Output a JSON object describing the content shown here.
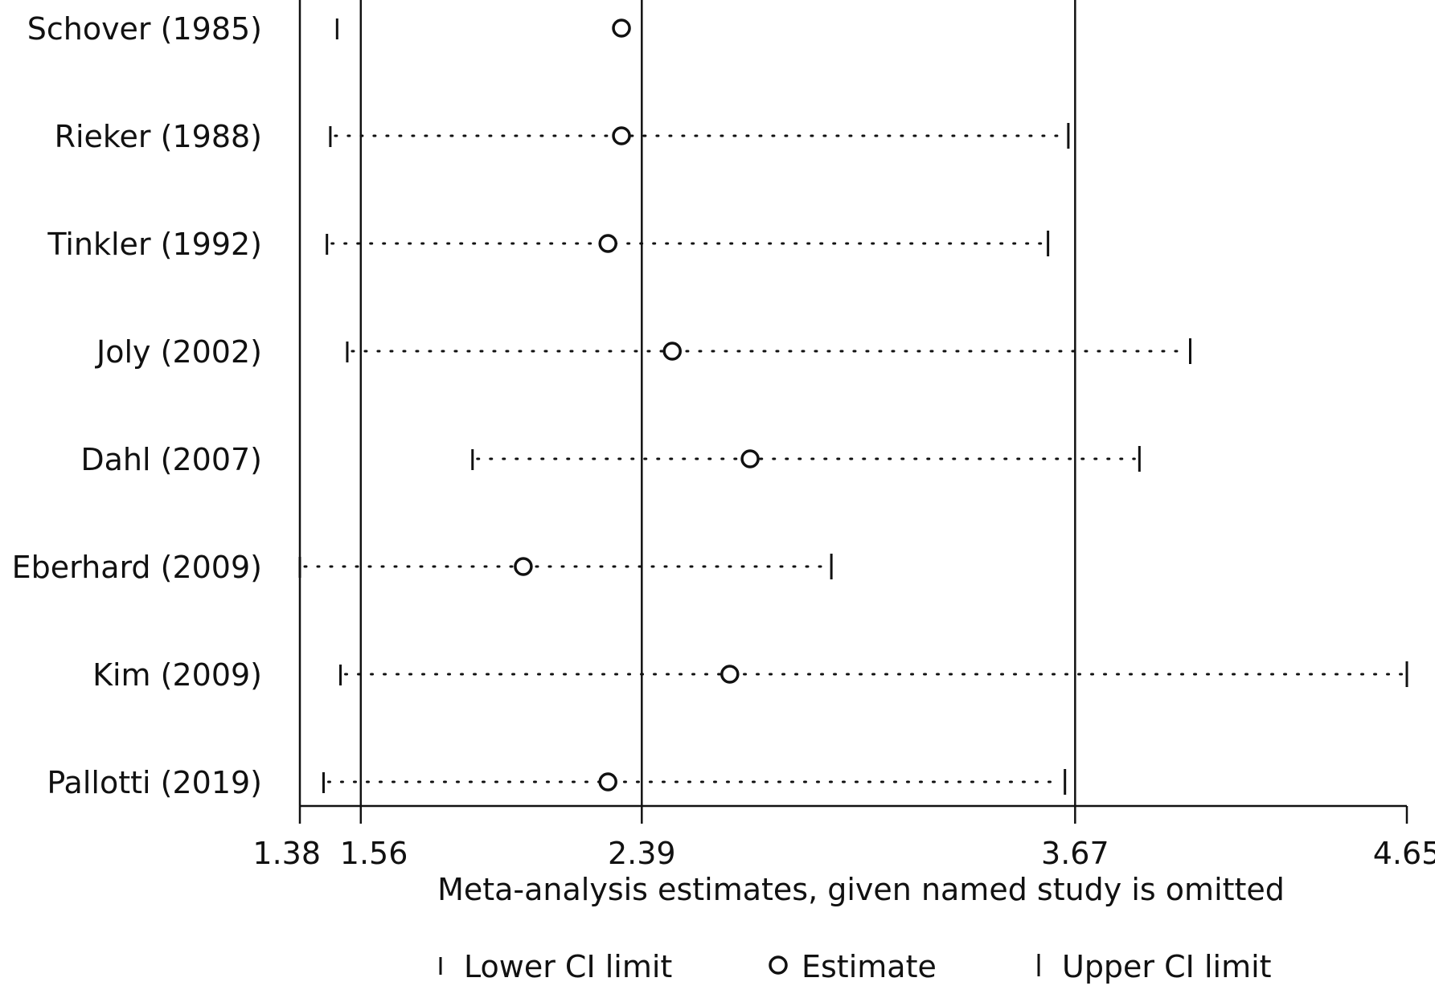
{
  "chart_data": {
    "type": "scatter",
    "title": "",
    "xlabel": "Meta-analysis estimates, given named study is omitted",
    "ylabel": "",
    "xlim": [
      1.38,
      4.65
    ],
    "xticks": [
      1.38,
      1.56,
      2.39,
      3.67,
      4.65
    ],
    "xtick_labels": [
      "1.38",
      "1.56",
      "2.39",
      "3.67",
      "4.65"
    ],
    "reference_lines": [
      1.38,
      1.56,
      2.39,
      3.67
    ],
    "grid": false,
    "legend_position": "bottom",
    "legend": [
      {
        "key": "lower",
        "label": "Lower CI limit"
      },
      {
        "key": "estimate",
        "label": "Estimate"
      },
      {
        "key": "upper",
        "label": "Upper CI limit"
      }
    ],
    "studies": [
      {
        "name": "Schover (1985)",
        "lower": 1.49,
        "estimate": 2.33,
        "upper": null
      },
      {
        "name": "Rieker (1988)",
        "lower": 1.47,
        "estimate": 2.33,
        "upper": 3.65
      },
      {
        "name": "Tinkler (1992)",
        "lower": 1.46,
        "estimate": 2.29,
        "upper": 3.59
      },
      {
        "name": "Joly (2002)",
        "lower": 1.52,
        "estimate": 2.48,
        "upper": 4.01
      },
      {
        "name": "Dahl (2007)",
        "lower": 1.89,
        "estimate": 2.71,
        "upper": 3.86
      },
      {
        "name": "Eberhard (2009)",
        "lower": 1.38,
        "estimate": 2.04,
        "upper": 2.95
      },
      {
        "name": "Kim (2009)",
        "lower": 1.5,
        "estimate": 2.65,
        "upper": 4.65
      },
      {
        "name": "Pallotti (2019)",
        "lower": 1.45,
        "estimate": 2.29,
        "upper": 3.64
      }
    ]
  }
}
